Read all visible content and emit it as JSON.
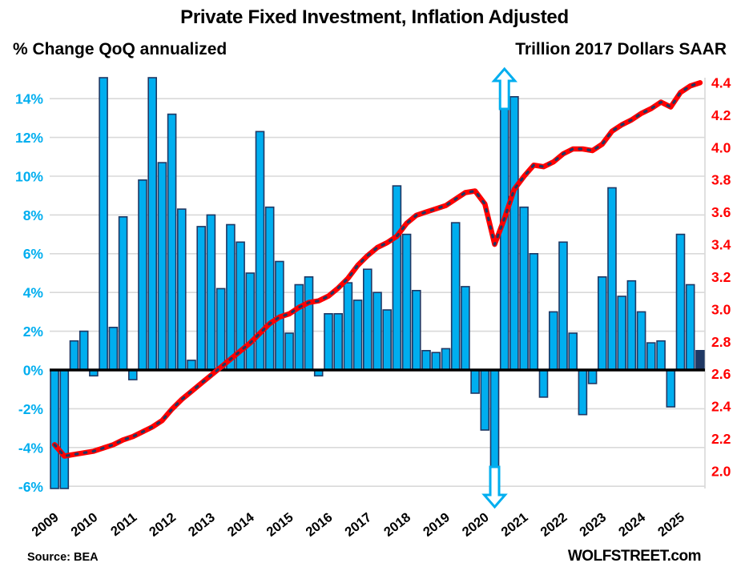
{
  "header": {
    "title": "Private Fixed Investment, Inflation Adjusted",
    "left_axis_title": "% Change QoQ annualized",
    "right_axis_title": "Trillion 2017 Dollars SAAR"
  },
  "footer": {
    "source": "Source: BEA",
    "branding": "WOLFSTREET.com"
  },
  "colors": {
    "bar_fill": "#00AEEF",
    "bar_border": "#1F3864",
    "highlight_bar_fill": "#1F3864",
    "line_red": "#FF0000",
    "line_dash_navy": "#1F3864",
    "left_axis_text": "#00AEEF",
    "right_axis_text": "#FF0000",
    "grid": "#D9D9D9",
    "zero_line": "#000000",
    "arrow_fill": "#FFFFFF",
    "arrow_border": "#00AEEF"
  },
  "chart_data": {
    "type": "bar+line combo",
    "x_axis": {
      "tick_labels": [
        "2009",
        "2010",
        "2011",
        "2012",
        "2013",
        "2014",
        "2015",
        "2016",
        "2017",
        "2018",
        "2019",
        "2020",
        "2021",
        "2022",
        "2023",
        "2024",
        "2025"
      ],
      "frequency": "quarterly",
      "start": "2009 Q1",
      "end": "2025 Q3"
    },
    "left_axis": {
      "title": "% Change QoQ annualized",
      "tick_labels": [
        "14%",
        "12%",
        "10%",
        "8%",
        "6%",
        "4%",
        "2%",
        "0%",
        "-2%",
        "-4%",
        "-6%"
      ],
      "range_pct": [
        -6.2,
        15.1
      ],
      "grid": true
    },
    "right_axis": {
      "title": "Trillion 2017 Dollars SAAR",
      "tick_labels": [
        "4.4",
        "4.2",
        "4.0",
        "3.8",
        "3.6",
        "3.4",
        "3.2",
        "3.0",
        "2.8",
        "2.6",
        "2.4",
        "2.2",
        "2.0"
      ],
      "range": [
        1.9,
        4.43
      ]
    },
    "bar_series": {
      "name": "% Change QoQ annualized",
      "axis": "left",
      "values": [
        -30,
        -30,
        1.5,
        2.0,
        -0.3,
        15.1,
        2.2,
        7.9,
        -0.5,
        9.8,
        15.1,
        10.7,
        13.2,
        8.3,
        0.5,
        7.4,
        8.0,
        4.2,
        7.5,
        6.6,
        5.0,
        12.3,
        8.4,
        5.6,
        1.9,
        4.4,
        4.8,
        -0.3,
        2.9,
        2.9,
        4.5,
        3.6,
        5.2,
        4.0,
        3.1,
        9.5,
        7.0,
        4.1,
        1.0,
        0.9,
        1.1,
        7.6,
        4.3,
        -1.2,
        -3.1,
        -30,
        30,
        14.1,
        8.4,
        6.0,
        -1.4,
        3.0,
        6.6,
        1.9,
        -2.3,
        -0.7,
        4.8,
        9.4,
        3.8,
        4.6,
        3.0,
        1.4,
        1.5,
        -1.9,
        7.0,
        4.4,
        1.0
      ],
      "clipped_low_indices": [
        0,
        1,
        45
      ],
      "clipped_high_indices": [
        46
      ],
      "clipped_note": "Bars for 2009 Q1, 2009 Q2, 2020 Q2 and 2020 Q3 extend beyond the axis and are clipped at the plot edge; arrows mark the 2020 bars.",
      "highlight_last_bar": true
    },
    "line_series": {
      "name": "Trillion 2017 Dollars SAAR",
      "axis": "right",
      "values": [
        2.16,
        2.09,
        2.1,
        2.11,
        2.12,
        2.14,
        2.16,
        2.19,
        2.21,
        2.24,
        2.27,
        2.31,
        2.38,
        2.44,
        2.49,
        2.54,
        2.59,
        2.64,
        2.69,
        2.74,
        2.79,
        2.85,
        2.91,
        2.95,
        2.97,
        3.01,
        3.04,
        3.05,
        3.08,
        3.13,
        3.19,
        3.27,
        3.33,
        3.38,
        3.41,
        3.45,
        3.53,
        3.58,
        3.6,
        3.62,
        3.64,
        3.68,
        3.72,
        3.73,
        3.65,
        3.4,
        3.56,
        3.74,
        3.82,
        3.89,
        3.88,
        3.91,
        3.96,
        3.99,
        3.99,
        3.98,
        4.02,
        4.1,
        4.14,
        4.17,
        4.21,
        4.24,
        4.28,
        4.25,
        4.34,
        4.38,
        4.4
      ]
    },
    "annotations": {
      "down_arrow_period": "2020 Q2",
      "up_arrow_period": "2020 Q3"
    },
    "legend_position": "none (axis titles act as legend)"
  }
}
